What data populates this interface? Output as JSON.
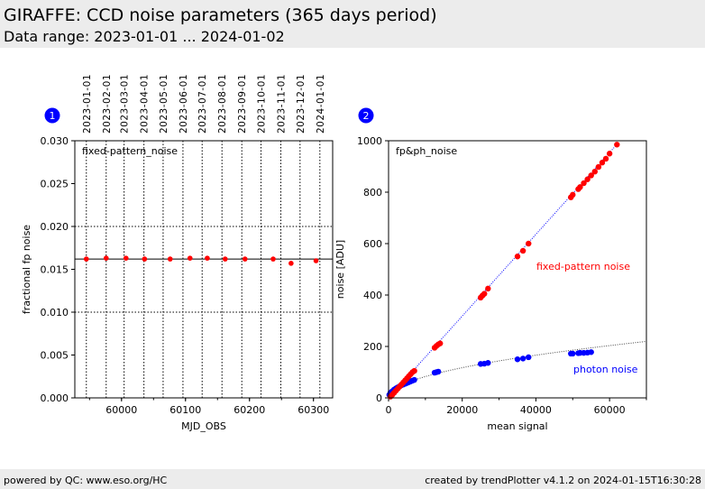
{
  "header": {
    "title": "GIRAFFE: CCD noise parameters (365 days period)",
    "subtitle": "Data range: 2023-01-01 ... 2024-01-02"
  },
  "footer": {
    "left": "powered by QC: www.eso.org/HC",
    "right": "created by trendPlotter v4.1.2 on 2024-01-15T16:30:28"
  },
  "chart_data": [
    {
      "type": "scatter",
      "badge": "1",
      "title": "fixed-pattern_noise",
      "xlabel": "MJD_OBS",
      "ylabel": "fractional fp noise",
      "xlim": [
        59927,
        60330
      ],
      "ylim": [
        0,
        0.03
      ],
      "xticks": [
        60000,
        60100,
        60200,
        60300
      ],
      "xtick_labels": [
        "60000",
        "60100",
        "60200",
        "60300"
      ],
      "yticks": [
        0,
        0.005,
        0.01,
        0.015,
        0.02,
        0.025,
        0.03
      ],
      "ytick_labels": [
        "0.000",
        "0.005",
        "0.010",
        "0.015",
        "0.020",
        "0.025",
        "0.030"
      ],
      "date_ticks": [
        59945,
        59976,
        60004,
        60035,
        60065,
        60096,
        60126,
        60157,
        60188,
        60218,
        60249,
        60279,
        60310
      ],
      "date_labels": [
        "2023-01-01",
        "2023-02-01",
        "2023-03-01",
        "2023-04-01",
        "2023-05-01",
        "2023-06-01",
        "2023-07-01",
        "2023-08-01",
        "2023-09-01",
        "2023-10-01",
        "2023-11-01",
        "2023-12-01",
        "2024-01-01"
      ],
      "reference_line": 0.0162,
      "point_color": "#ff0000",
      "x": [
        59945,
        59976,
        60007,
        60036,
        60076,
        60107,
        60134,
        60162,
        60193,
        60237,
        60265,
        60304
      ],
      "y": [
        0.0162,
        0.0163,
        0.0163,
        0.0162,
        0.0162,
        0.0163,
        0.0163,
        0.0162,
        0.0162,
        0.0162,
        0.0157,
        0.016
      ]
    },
    {
      "type": "scatter",
      "badge": "2",
      "title": "fp&ph_noise",
      "xlabel": "mean signal",
      "ylabel": "noise [ADU]",
      "xlim": [
        0,
        70000
      ],
      "ylim": [
        0,
        1000
      ],
      "xticks": [
        0,
        20000,
        40000,
        60000
      ],
      "xtick_labels": [
        "0",
        "20000",
        "40000",
        "60000"
      ],
      "yticks": [
        0,
        200,
        400,
        600,
        800,
        1000
      ],
      "ytick_labels": [
        "0",
        "200",
        "400",
        "600",
        "800",
        "1000"
      ],
      "series": [
        {
          "name": "fixed-pattern noise",
          "color": "#ff0000",
          "fit": "linear",
          "slope": 0.0159,
          "x": [
            500,
            1000,
            1500,
            2000,
            2500,
            3000,
            3500,
            4000,
            4500,
            5000,
            5500,
            6000,
            6500,
            7000,
            12500,
            13000,
            13500,
            14000,
            25000,
            25500,
            26000,
            27000,
            35000,
            36500,
            38000,
            49500,
            50000,
            51500,
            52000,
            53000,
            54000,
            55000,
            56000,
            57000,
            58000,
            59000,
            60000,
            62000
          ],
          "y": [
            5,
            12,
            20,
            28,
            36,
            44,
            52,
            60,
            68,
            76,
            84,
            92,
            100,
            105,
            195,
            202,
            208,
            212,
            390,
            398,
            405,
            425,
            550,
            572,
            600,
            780,
            790,
            812,
            820,
            835,
            850,
            865,
            880,
            898,
            915,
            930,
            950,
            985
          ]
        },
        {
          "name": "photon noise",
          "color": "#0000ff",
          "fit": "sqrt",
          "coef": 0.83,
          "x": [
            200,
            500,
            1000,
            1500,
            2000,
            2500,
            3000,
            3500,
            4000,
            4500,
            5000,
            5500,
            6000,
            6500,
            7000,
            12500,
            13000,
            13500,
            25000,
            26000,
            27000,
            35000,
            36500,
            38000,
            49500,
            50000,
            51500,
            52000,
            53000,
            54000,
            55000
          ],
          "y": [
            12,
            20,
            26,
            32,
            37,
            41,
            45,
            49,
            52,
            55,
            58,
            61,
            64,
            67,
            70,
            98,
            100,
            102,
            132,
            133,
            136,
            150,
            153,
            158,
            172,
            172,
            174,
            175,
            175,
            176,
            178
          ]
        }
      ]
    }
  ]
}
